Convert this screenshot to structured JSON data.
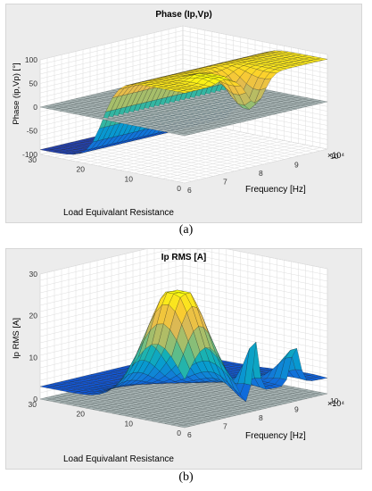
{
  "captions": {
    "a": "(a)",
    "b": "(b)"
  },
  "colors": {
    "panel_bg": "#ececec",
    "colormap": "parula",
    "reference_plane": "#9aa7a7"
  },
  "chart_data": [
    {
      "type": "surface3d",
      "title": "Phase (Ip,Vp)",
      "zlabel": "Phase (ip,Vp) [°]",
      "xlabel": "Frequency [Hz]",
      "ylabel": "Load Equivalant Resistance",
      "x_exponent": "×10⁴",
      "xlim": [
        6,
        10
      ],
      "ylim": [
        0,
        30
      ],
      "zlim": [
        -100,
        100
      ],
      "xticks": [
        "6",
        "7",
        "8",
        "9",
        "10"
      ],
      "yticks": [
        "0",
        "10",
        "20",
        "30"
      ],
      "zticks": [
        "-100",
        "-50",
        "0",
        "50",
        "100"
      ],
      "grid": true,
      "surfaces": [
        "phase surface",
        "plane at 0°"
      ],
      "plane_z": 0
    },
    {
      "type": "surface3d",
      "title": "Ip RMS [A]",
      "zlabel": "Ip RMS [A]",
      "xlabel": "Frequency [Hz]",
      "ylabel": "Load Equivalant Resistance",
      "x_exponent": "×10⁴",
      "xlim": [
        6,
        10
      ],
      "ylim": [
        0,
        30
      ],
      "zlim": [
        0,
        30
      ],
      "xticks": [
        "6",
        "7",
        "8",
        "9",
        "10"
      ],
      "yticks": [
        "0",
        "10",
        "20",
        "30"
      ],
      "zticks": [
        "0",
        "10",
        "20",
        "30"
      ],
      "grid": true,
      "surfaces": [
        "Ip RMS surface",
        "plane at 0"
      ],
      "plane_z": 0
    }
  ]
}
